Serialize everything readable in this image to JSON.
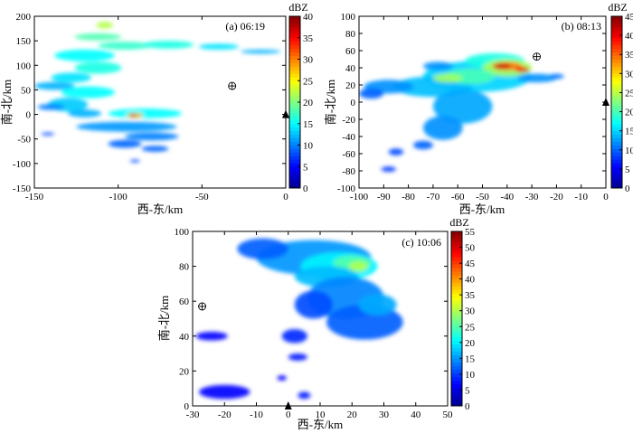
{
  "chart_data": [
    {
      "panel": "a",
      "type": "heatmap",
      "label": "(a) 06:19",
      "xlabel": "西-东/km",
      "ylabel": "南-北/km",
      "xlim": [
        -150,
        0
      ],
      "ylim": [
        -150,
        200
      ],
      "xticks": [
        -150,
        -100,
        -50,
        0
      ],
      "yticks": [
        -150,
        -100,
        -50,
        0,
        50,
        100,
        150,
        200
      ],
      "colorbar": {
        "label": "dBZ",
        "min": 0,
        "max": 40,
        "ticks": [
          0,
          5,
          10,
          15,
          20,
          25,
          30,
          35,
          40
        ]
      },
      "radar_site": [
        0,
        0
      ],
      "marker": [
        -32,
        58
      ],
      "echo_cells": [
        {
          "x": -108,
          "y": 182,
          "rx": 5,
          "ry": 7,
          "dbz": 22
        },
        {
          "x": -112,
          "y": 158,
          "rx": 14,
          "ry": 7,
          "dbz": 18
        },
        {
          "x": -96,
          "y": 140,
          "rx": 16,
          "ry": 8,
          "dbz": 17
        },
        {
          "x": -70,
          "y": 142,
          "rx": 15,
          "ry": 8,
          "dbz": 16
        },
        {
          "x": -40,
          "y": 138,
          "rx": 12,
          "ry": 6,
          "dbz": 14
        },
        {
          "x": -15,
          "y": 128,
          "rx": 12,
          "ry": 4,
          "dbz": 12
        },
        {
          "x": -120,
          "y": 120,
          "rx": 18,
          "ry": 12,
          "dbz": 15
        },
        {
          "x": -112,
          "y": 95,
          "rx": 14,
          "ry": 12,
          "dbz": 16
        },
        {
          "x": -128,
          "y": 75,
          "rx": 12,
          "ry": 10,
          "dbz": 14
        },
        {
          "x": -138,
          "y": 58,
          "rx": 12,
          "ry": 8,
          "dbz": 12
        },
        {
          "x": -118,
          "y": 45,
          "rx": 16,
          "ry": 12,
          "dbz": 15
        },
        {
          "x": -130,
          "y": 20,
          "rx": 12,
          "ry": 14,
          "dbz": 13
        },
        {
          "x": -120,
          "y": 2,
          "rx": 10,
          "ry": 8,
          "dbz": 12
        },
        {
          "x": -140,
          "y": 15,
          "rx": 8,
          "ry": 6,
          "dbz": 10
        },
        {
          "x": -84,
          "y": 2,
          "rx": 22,
          "ry": 10,
          "dbz": 15
        },
        {
          "x": -90,
          "y": -2,
          "rx": 5,
          "ry": 5,
          "dbz": 28
        },
        {
          "x": -91,
          "y": -2,
          "rx": 2,
          "ry": 2.5,
          "dbz": 38
        },
        {
          "x": -95,
          "y": -25,
          "rx": 30,
          "ry": 10,
          "dbz": 11
        },
        {
          "x": -80,
          "y": -45,
          "rx": 16,
          "ry": 8,
          "dbz": 10
        },
        {
          "x": -96,
          "y": -60,
          "rx": 10,
          "ry": 8,
          "dbz": 9
        },
        {
          "x": -78,
          "y": -70,
          "rx": 8,
          "ry": 6,
          "dbz": 9
        },
        {
          "x": -90,
          "y": -95,
          "rx": 3,
          "ry": 3,
          "dbz": 8
        },
        {
          "x": -142,
          "y": -40,
          "rx": 4,
          "ry": 3,
          "dbz": 8
        }
      ]
    },
    {
      "panel": "b",
      "type": "heatmap",
      "label": "(b) 08:13",
      "xlabel": "西-东/km",
      "ylabel": "南-北/km",
      "xlim": [
        -100,
        0
      ],
      "ylim": [
        -100,
        100
      ],
      "xticks": [
        -100,
        -90,
        -80,
        -70,
        -60,
        -50,
        -40,
        -30,
        -20,
        -10,
        0
      ],
      "yticks": [
        -100,
        -80,
        -60,
        -40,
        -20,
        0,
        20,
        40,
        60,
        80,
        100
      ],
      "colorbar": {
        "label": "dBZ",
        "min": 0,
        "max": 45,
        "ticks": [
          0,
          5,
          10,
          15,
          20,
          25,
          30,
          35,
          40,
          45
        ]
      },
      "radar_site": [
        0,
        0
      ],
      "marker": [
        -28,
        53
      ],
      "echo_cells": [
        {
          "x": -52,
          "y": 30,
          "rx": 22,
          "ry": 18,
          "dbz": 15
        },
        {
          "x": -70,
          "y": 18,
          "rx": 16,
          "ry": 12,
          "dbz": 14
        },
        {
          "x": -88,
          "y": 18,
          "rx": 10,
          "ry": 8,
          "dbz": 12
        },
        {
          "x": -45,
          "y": 48,
          "rx": 12,
          "ry": 9,
          "dbz": 18
        },
        {
          "x": -40,
          "y": 40,
          "rx": 10,
          "ry": 10,
          "dbz": 24
        },
        {
          "x": -55,
          "y": 30,
          "rx": 10,
          "ry": 9,
          "dbz": 20
        },
        {
          "x": -64,
          "y": 28,
          "rx": 6,
          "ry": 5,
          "dbz": 24
        },
        {
          "x": -40,
          "y": 42,
          "rx": 6,
          "ry": 5,
          "dbz": 34
        },
        {
          "x": -42,
          "y": 42,
          "rx": 3.5,
          "ry": 3,
          "dbz": 42
        },
        {
          "x": -34,
          "y": 38,
          "rx": 3,
          "ry": 3,
          "dbz": 40
        },
        {
          "x": -58,
          "y": -5,
          "rx": 12,
          "ry": 20,
          "dbz": 13
        },
        {
          "x": -66,
          "y": -30,
          "rx": 8,
          "ry": 14,
          "dbz": 12
        },
        {
          "x": -74,
          "y": -50,
          "rx": 4,
          "ry": 5,
          "dbz": 10
        },
        {
          "x": -85,
          "y": -58,
          "rx": 3,
          "ry": 4,
          "dbz": 9
        },
        {
          "x": -88,
          "y": -78,
          "rx": 3,
          "ry": 3,
          "dbz": 8
        },
        {
          "x": -28,
          "y": 28,
          "rx": 8,
          "ry": 5,
          "dbz": 12
        },
        {
          "x": -20,
          "y": 30,
          "rx": 3,
          "ry": 3,
          "dbz": 11
        },
        {
          "x": -68,
          "y": 42,
          "rx": 6,
          "ry": 5,
          "dbz": 12
        },
        {
          "x": -95,
          "y": 10,
          "rx": 5,
          "ry": 6,
          "dbz": 10
        }
      ]
    },
    {
      "panel": "c",
      "type": "heatmap",
      "label": "(c) 10:06",
      "xlabel": "西-东/km",
      "ylabel": "南-北/km",
      "xlim": [
        -30,
        50
      ],
      "ylim": [
        0,
        100
      ],
      "xticks": [
        -30,
        -20,
        -10,
        0,
        10,
        20,
        30,
        40,
        50
      ],
      "yticks": [
        0,
        20,
        40,
        60,
        80,
        100
      ],
      "colorbar": {
        "label": "dBZ",
        "min": 0,
        "max": 55,
        "ticks": [
          0,
          5,
          10,
          15,
          20,
          25,
          30,
          35,
          40,
          45,
          50,
          55
        ]
      },
      "radar_site": [
        0,
        0
      ],
      "marker": [
        -27,
        57
      ],
      "echo_cells": [
        {
          "x": 8,
          "y": 85,
          "rx": 18,
          "ry": 10,
          "dbz": 15
        },
        {
          "x": -8,
          "y": 90,
          "rx": 8,
          "ry": 6,
          "dbz": 12
        },
        {
          "x": 16,
          "y": 80,
          "rx": 12,
          "ry": 8,
          "dbz": 20
        },
        {
          "x": 20,
          "y": 82,
          "rx": 6,
          "ry": 4,
          "dbz": 25
        },
        {
          "x": 22,
          "y": 80,
          "rx": 3,
          "ry": 3,
          "dbz": 30
        },
        {
          "x": 12,
          "y": 74,
          "rx": 10,
          "ry": 6,
          "dbz": 17
        },
        {
          "x": 18,
          "y": 62,
          "rx": 12,
          "ry": 12,
          "dbz": 14
        },
        {
          "x": 24,
          "y": 48,
          "rx": 12,
          "ry": 10,
          "dbz": 12
        },
        {
          "x": 28,
          "y": 58,
          "rx": 6,
          "ry": 6,
          "dbz": 16
        },
        {
          "x": 8,
          "y": 58,
          "rx": 6,
          "ry": 8,
          "dbz": 11
        },
        {
          "x": 2,
          "y": 40,
          "rx": 4,
          "ry": 4,
          "dbz": 9
        },
        {
          "x": 3,
          "y": 28,
          "rx": 3,
          "ry": 2,
          "dbz": 8
        },
        {
          "x": -24,
          "y": 40,
          "rx": 5,
          "ry": 2.5,
          "dbz": 7
        },
        {
          "x": -20,
          "y": 8,
          "rx": 8,
          "ry": 4,
          "dbz": 7
        },
        {
          "x": 5,
          "y": 6,
          "rx": 2,
          "ry": 2,
          "dbz": 8
        },
        {
          "x": -2,
          "y": 16,
          "rx": 1.5,
          "ry": 1.5,
          "dbz": 7
        }
      ]
    }
  ]
}
